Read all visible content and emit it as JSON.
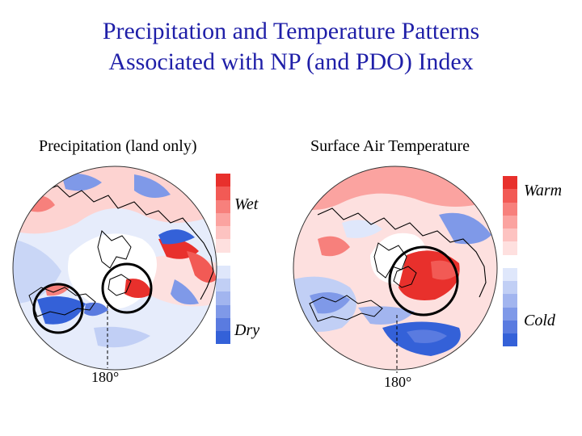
{
  "title_line1": "Precipitation and Temperature Patterns",
  "title_line2": "Associated with NP (and PDO) Index",
  "panels": {
    "left": {
      "title": "Precipitation (land only)",
      "high_label": "Wet",
      "low_label": "Dry",
      "longitude_label": "180°"
    },
    "right": {
      "title": "Surface Air Temperature",
      "high_label": "Warm",
      "low_label": "Cold",
      "longitude_label": "180°"
    }
  },
  "colors": {
    "title": "#1f1fa8",
    "colorbar_scale": [
      "#e8302c",
      "#f25a55",
      "#f7807c",
      "#fba3a0",
      "#fdc3c1",
      "#fee0df",
      "#ffffff",
      "#dfe7fb",
      "#c1cff5",
      "#a2b5ef",
      "#7f99e8",
      "#5a7be0",
      "#3461d8"
    ]
  }
}
